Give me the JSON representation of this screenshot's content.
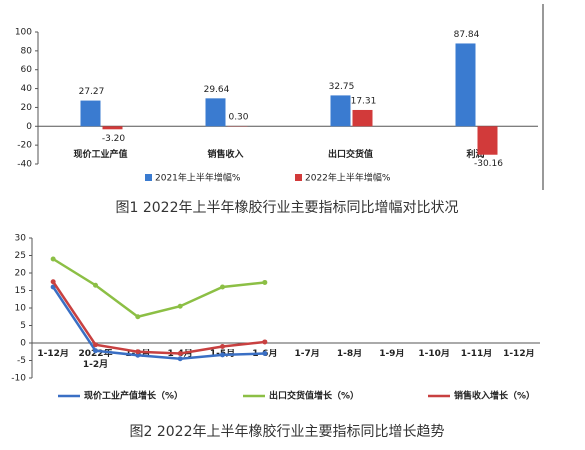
{
  "chart_data": [
    {
      "type": "bar",
      "title": "图1 2022年上半年橡胶行业主要指标同比增幅对比状况",
      "categories": [
        "现价工业产值",
        "销售收入",
        "出口交货值",
        "利润"
      ],
      "series": [
        {
          "name": "2021年上半年增幅%",
          "color": "#3a7bd0",
          "values": [
            27.27,
            29.64,
            32.75,
            87.84
          ],
          "value_labels": [
            "27.27",
            "29.64",
            "32.75",
            "87.84"
          ]
        },
        {
          "name": "2022年上半年增幅%",
          "color": "#d23a3a",
          "values": [
            -3.2,
            0.3,
            17.31,
            -30.16
          ],
          "value_labels": [
            "-3.20",
            "0.30",
            "17.31",
            "-30.16"
          ]
        }
      ],
      "ylim": [
        -40,
        100
      ],
      "yticks": [
        -40,
        -20,
        0,
        20,
        40,
        60,
        80,
        100
      ]
    },
    {
      "type": "line",
      "title": "图2 2022年上半年橡胶行业主要指标同比增长趋势",
      "categories": [
        "1-12月",
        "2022年\n1-2月",
        "1-3月",
        "1-4月",
        "1-5月",
        "1-6月",
        "1-7月",
        "1-8月",
        "1-9月",
        "1-10月",
        "1-11月",
        "1-12月"
      ],
      "series": [
        {
          "name": "现价工业产值增长（%）",
          "color": "#3a6fc4",
          "values": [
            16,
            -2.2,
            -3.5,
            -4.5,
            -3.4,
            -3,
            null,
            null,
            null,
            null,
            null,
            null
          ]
        },
        {
          "name": "出口交货值增长（%）",
          "color": "#8cbf45",
          "values": [
            24,
            16.5,
            7.5,
            10.5,
            16,
            17.3,
            null,
            null,
            null,
            null,
            null,
            null
          ]
        },
        {
          "name": "销售收入增长（%）",
          "color": "#c84040",
          "values": [
            17.5,
            -0.5,
            -2.5,
            -3,
            -1,
            0.3,
            null,
            null,
            null,
            null,
            null,
            null
          ]
        }
      ],
      "ylim": [
        -10,
        30
      ],
      "yticks": [
        -10,
        -5,
        0,
        5,
        10,
        15,
        20,
        25,
        30
      ]
    }
  ]
}
